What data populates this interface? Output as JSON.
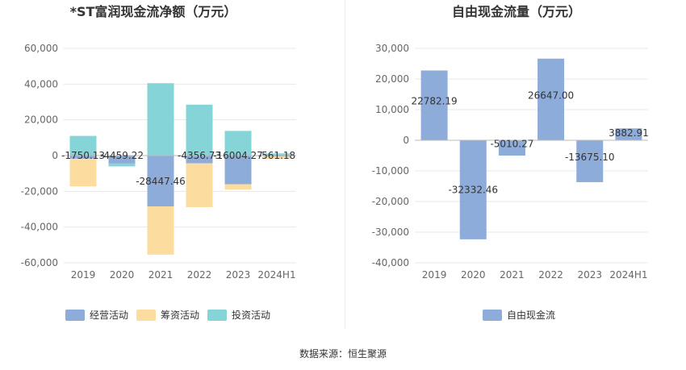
{
  "colors": {
    "operating": "#8eacd9",
    "financing": "#fddca0",
    "investing": "#85d4d8",
    "fcf": "#8eacd9",
    "grid": "#e8e8e8",
    "axis_text": "#666666",
    "title": "#333333"
  },
  "source": "数据来源：恒生聚源",
  "chart_data": [
    {
      "type": "bar",
      "stacked": true,
      "title": "*ST富润现金流净额（万元）",
      "categories": [
        "2019",
        "2020",
        "2021",
        "2022",
        "2023",
        "2024H1"
      ],
      "ylim": [
        -60000,
        60000
      ],
      "yticks": [
        60000,
        40000,
        20000,
        0,
        -20000,
        -40000,
        -60000
      ],
      "ytick_labels": [
        "60,000",
        "40,000",
        "20,000",
        "0",
        "-20,000",
        "-40,000",
        "-60,000"
      ],
      "series": [
        {
          "name": "经营活动",
          "key": "operating",
          "values": [
            -1750.13,
            -4459.22,
            -28447.46,
            -4356.73,
            -16004.27,
            -561.18
          ]
        },
        {
          "name": "筹资活动",
          "key": "financing",
          "values": [
            -15500,
            0,
            -27000,
            -24500,
            -3000,
            -1300
          ]
        },
        {
          "name": "投资活动",
          "key": "investing",
          "values": [
            11000,
            -1600,
            40500,
            28500,
            13800,
            1200
          ]
        }
      ],
      "data_labels": [
        "-1750.13",
        "-4459.22",
        "-28447.46",
        "-4356.73",
        "-16004.27",
        "-561.18"
      ],
      "legend": [
        "经营活动",
        "筹资活动",
        "投资活动"
      ],
      "legend_position": "bottom-left"
    },
    {
      "type": "bar",
      "title": "自由现金流量（万元）",
      "categories": [
        "2019",
        "2020",
        "2021",
        "2022",
        "2023",
        "2024H1"
      ],
      "ylim": [
        -40000,
        30000
      ],
      "yticks": [
        30000,
        20000,
        10000,
        0,
        -10000,
        -20000,
        -30000,
        -40000
      ],
      "ytick_labels": [
        "30,000",
        "20,000",
        "10,000",
        "0",
        "-10,000",
        "-20,000",
        "-30,000",
        "-40,000"
      ],
      "series": [
        {
          "name": "自由现金流",
          "key": "fcf",
          "values": [
            22782.19,
            -32332.46,
            -5010.27,
            26647.0,
            -13675.1,
            3882.91
          ]
        }
      ],
      "data_labels": [
        "22782.19",
        "-32332.46",
        "-5010.27",
        "26647.00",
        "-13675.10",
        "3882.91"
      ],
      "legend": [
        "自由现金流"
      ],
      "legend_position": "bottom-center"
    }
  ]
}
